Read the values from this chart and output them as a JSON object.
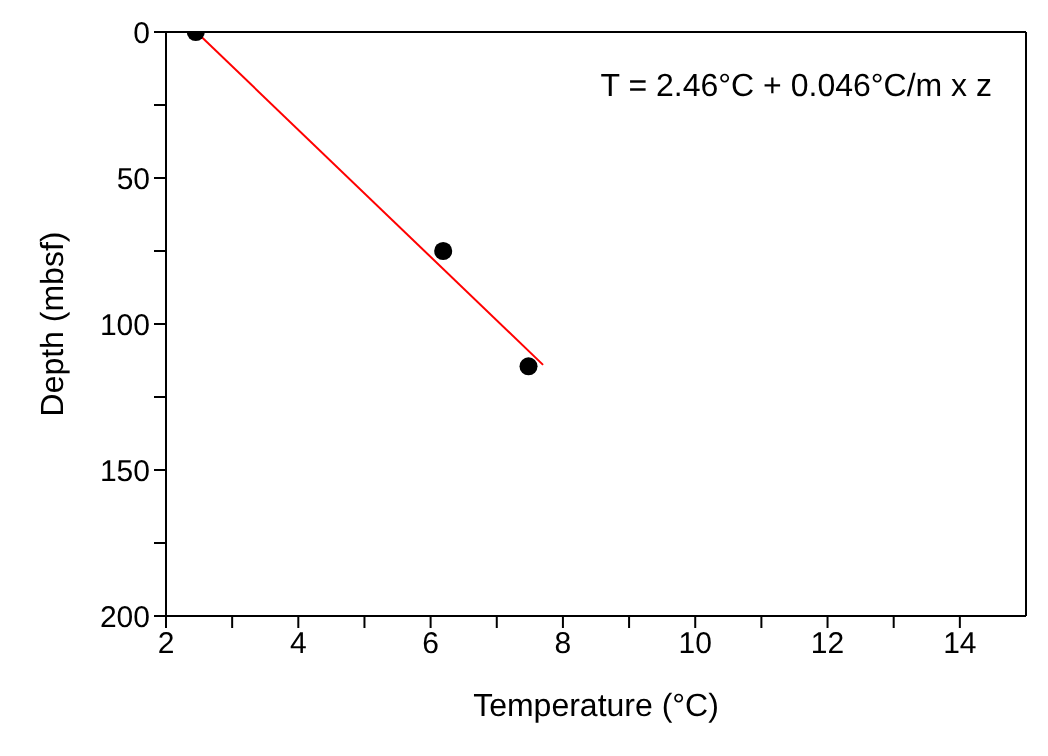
{
  "chart_data": {
    "type": "scatter",
    "xlabel": "Temperature (°C)",
    "ylabel": "Depth (mbsf)",
    "annotations": [
      "T = 2.46°C + 0.046°C/m x z"
    ],
    "xlim": [
      2,
      15
    ],
    "xticks": [
      2,
      {
        "value": 3,
        "label": null
      },
      4,
      {
        "value": 5,
        "label": null
      },
      6,
      {
        "value": 7,
        "label": null
      },
      8,
      {
        "value": 9,
        "label": null
      },
      10,
      {
        "value": 11,
        "label": null
      },
      12,
      {
        "value": 13,
        "label": null
      },
      14
    ],
    "ylim": [
      200,
      0
    ],
    "yticks": [
      0,
      {
        "value": 25,
        "label": null
      },
      50,
      {
        "value": 75,
        "label": null
      },
      100,
      {
        "value": 125,
        "label": null
      },
      150,
      {
        "value": 175,
        "label": null
      },
      200
    ],
    "legend": false,
    "series": [
      {
        "color": "#000000",
        "marker": "circle",
        "x": [
          2.45,
          6.19,
          7.48
        ],
        "values": [
          0,
          75,
          114.5
        ]
      },
      {
        "type": "line",
        "color": "#ff0000",
        "marker": "none",
        "line_style": "solid",
        "x": [
          2.46,
          7.7
        ],
        "values": [
          0,
          114
        ]
      }
    ]
  }
}
